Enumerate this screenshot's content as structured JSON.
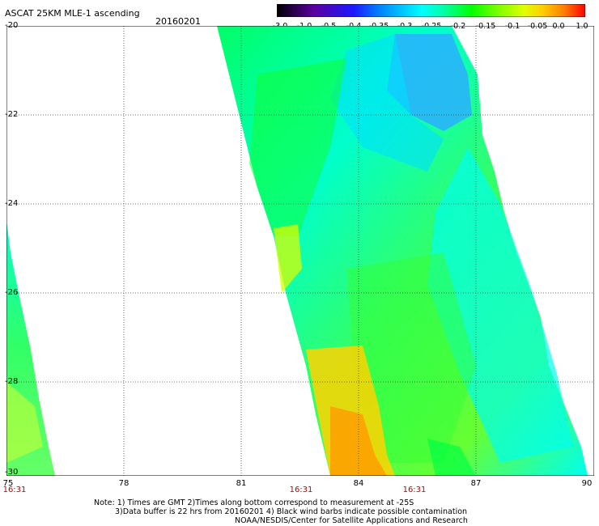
{
  "header": {
    "title": "ASCAT 25KM MLE-1 ascending",
    "date": "20160201"
  },
  "colorbar": {
    "labels": [
      "-3.0",
      "-1.0",
      "-0.5",
      "-0.4",
      "-0.35",
      "-0.3",
      "-0.25",
      "-0.2",
      "-0.15",
      "-0.1",
      "-0.05",
      "0.0",
      "1.0"
    ],
    "colors": [
      "#000000",
      "#5a00a0",
      "#1a1aff",
      "#0080ff",
      "#00c0ff",
      "#00ffff",
      "#00ff99",
      "#00ff00",
      "#80ff00",
      "#e0ff00",
      "#ffd000",
      "#ff8000",
      "#ff0000"
    ]
  },
  "map": {
    "lon_ticks": [
      "75",
      "78",
      "81",
      "84",
      "87",
      "90"
    ],
    "lat_ticks": [
      "-20",
      "-22",
      "-24",
      "-26",
      "-28",
      "-30"
    ],
    "times": [
      "16:31",
      "16:31",
      "16:31"
    ]
  },
  "notes": {
    "line1": "Note: 1) Times are GMT 2)Times along bottom correspond to measurement at -25S",
    "line2": "3)Data buffer is 22 hrs from 20160201 4) Black wind barbs indicate possible contamination",
    "line3": "NOAA/NESDIS/Center for Satellite Applications and Research"
  }
}
